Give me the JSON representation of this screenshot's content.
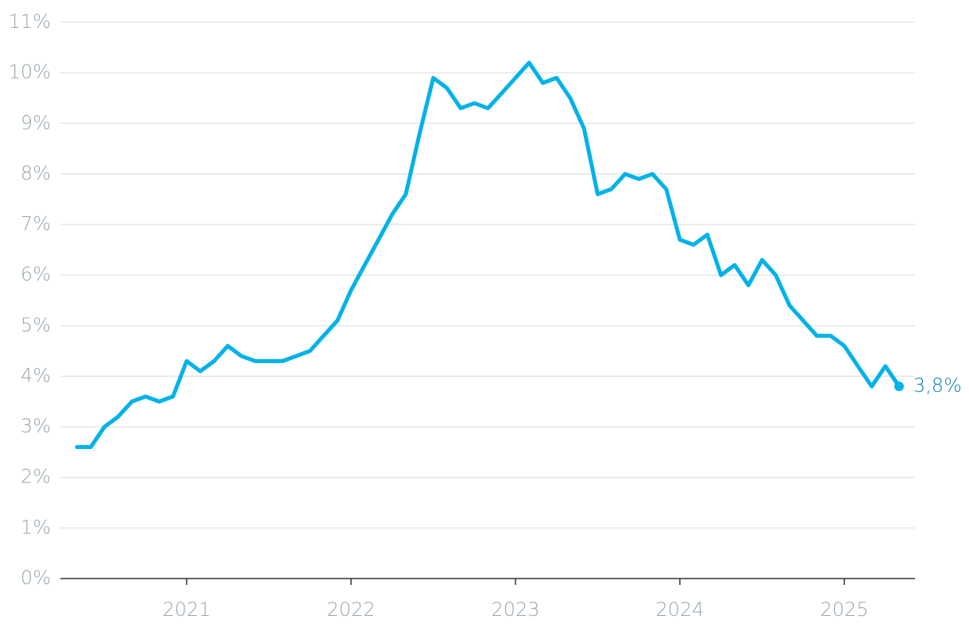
{
  "chart_data": {
    "type": "line",
    "x": [
      2020.333,
      2020.417,
      2020.5,
      2020.583,
      2020.667,
      2020.75,
      2020.833,
      2020.917,
      2021,
      2021.083,
      2021.167,
      2021.25,
      2021.333,
      2021.417,
      2021.5,
      2021.583,
      2021.667,
      2021.75,
      2021.833,
      2021.917,
      2022,
      2022.083,
      2022.167,
      2022.25,
      2022.333,
      2022.417,
      2022.5,
      2022.583,
      2022.667,
      2022.75,
      2022.833,
      2022.917,
      2023,
      2023.083,
      2023.167,
      2023.25,
      2023.333,
      2023.417,
      2023.5,
      2023.583,
      2023.667,
      2023.75,
      2023.833,
      2023.917,
      2024,
      2024.083,
      2024.167,
      2024.25,
      2024.333,
      2024.417,
      2024.5,
      2024.583,
      2024.667,
      2024.75,
      2024.833,
      2024.917,
      2025,
      2025.083,
      2025.167,
      2025.25,
      2025.333
    ],
    "values": [
      2.6,
      2.6,
      3.0,
      3.2,
      3.5,
      3.6,
      3.5,
      3.6,
      4.3,
      4.1,
      4.3,
      4.6,
      4.4,
      4.3,
      4.3,
      4.3,
      4.4,
      4.5,
      4.8,
      5.1,
      5.7,
      6.2,
      6.7,
      7.2,
      7.6,
      8.8,
      9.9,
      9.7,
      9.3,
      9.4,
      9.3,
      9.6,
      9.9,
      10.2,
      9.8,
      9.9,
      9.5,
      8.9,
      7.6,
      7.7,
      8.0,
      7.9,
      8.0,
      7.7,
      6.7,
      6.6,
      6.8,
      6.0,
      6.2,
      5.8,
      6.3,
      6.0,
      5.4,
      5.1,
      4.8,
      4.8,
      4.6,
      4.2,
      3.8,
      4.2,
      3.8
    ],
    "value_labels": [
      null,
      null,
      null,
      null,
      null,
      null,
      null,
      null,
      null,
      null,
      null,
      null,
      null,
      null,
      null,
      null,
      null,
      null,
      null,
      null,
      null,
      null,
      null,
      null,
      null,
      null,
      null,
      null,
      null,
      null,
      null,
      null,
      null,
      null,
      null,
      null,
      null,
      null,
      null,
      null,
      null,
      null,
      null,
      null,
      null,
      null,
      null,
      null,
      null,
      null,
      null,
      null,
      null,
      null,
      null,
      null,
      null,
      null,
      null,
      null,
      "3,8%"
    ],
    "color": "#00b2e8",
    "xlim": [
      2020.232,
      2025.43
    ],
    "xticks": [
      2021,
      2022,
      2023,
      2024,
      2025
    ],
    "ylim": [
      0,
      11
    ],
    "yticks": [
      {
        "value": 0,
        "label": "0%"
      },
      {
        "value": 1,
        "label": "1%"
      },
      {
        "value": 2,
        "label": "2%"
      },
      {
        "value": 3,
        "label": "3%"
      },
      {
        "value": 4,
        "label": "4%"
      },
      {
        "value": 5,
        "label": "5%"
      },
      {
        "value": 6,
        "label": "6%"
      },
      {
        "value": 7,
        "label": "7%"
      },
      {
        "value": 8,
        "label": "8%"
      },
      {
        "value": 9,
        "label": "9%"
      },
      {
        "value": 10,
        "label": "10%"
      },
      {
        "value": 11,
        "label": "11%"
      }
    ],
    "grid": true
  }
}
